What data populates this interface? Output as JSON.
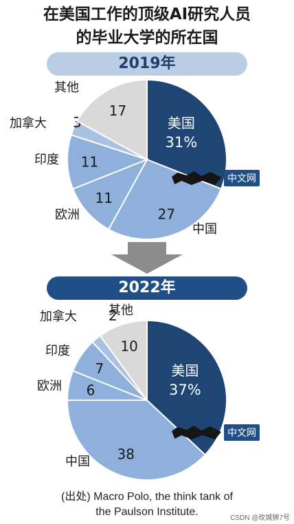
{
  "title_line1": "在美国工作的顶级AI研究人员",
  "title_line2": "的毕业大学的所在国",
  "source_line1": "(出处) Macro Polo, the think tank of",
  "source_line2": "the Paulson Institute.",
  "credit": "CSDN @玫城狮7号",
  "watermark": "中文网",
  "colors": {
    "usa": "#1f4575",
    "china": "#8eb0da",
    "europe": "#8eb0da",
    "india": "#8eb0da",
    "canada": "#a9c2e2",
    "other": "#d9d9d9",
    "arrow": "#8c8c8c"
  },
  "chart_data": [
    {
      "type": "pie",
      "title": "2019年",
      "slices": [
        {
          "label": "美国",
          "value": 31,
          "display": "31%"
        },
        {
          "label": "中国",
          "value": 27,
          "display": "27"
        },
        {
          "label": "欧洲",
          "value": 11,
          "display": "11"
        },
        {
          "label": "印度",
          "value": 11,
          "display": "11"
        },
        {
          "label": "加拿大",
          "value": 3,
          "display": "3"
        },
        {
          "label": "其他",
          "value": 17,
          "display": "17"
        }
      ]
    },
    {
      "type": "pie",
      "title": "2022年",
      "slices": [
        {
          "label": "美国",
          "value": 37,
          "display": "37%"
        },
        {
          "label": "中国",
          "value": 38,
          "display": "38"
        },
        {
          "label": "欧洲",
          "value": 6,
          "display": "6"
        },
        {
          "label": "印度",
          "value": 7,
          "display": "7"
        },
        {
          "label": "加拿大",
          "value": 2,
          "display": "2"
        },
        {
          "label": "其他",
          "value": 10,
          "display": "10"
        }
      ]
    }
  ]
}
